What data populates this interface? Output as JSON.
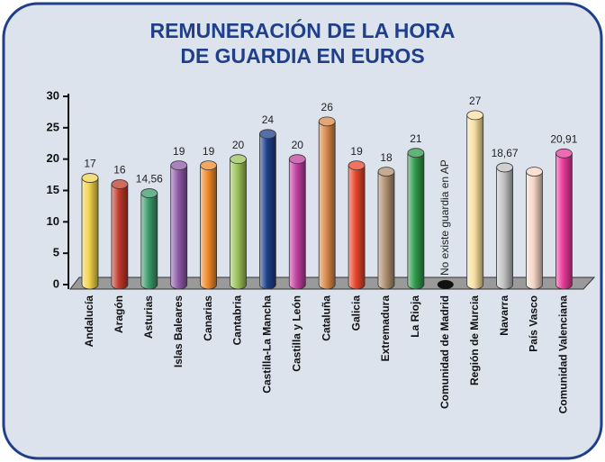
{
  "chart_data": {
    "type": "bar",
    "title": [
      "REMUNERACIÓN DE LA HORA",
      "DE GUARDIA EN EUROS"
    ],
    "categories": [
      "Andalucía",
      "Aragón",
      "Asturias",
      "Islas Baleares",
      "Canarias",
      "Cantabria",
      "Castilla-La Mancha",
      "Castilla y León",
      "Cataluña",
      "Galicia",
      "Extremadura",
      "La Rioja",
      "Comunidad de Madrid",
      "Región de Murcia",
      "Navarra",
      "País Vasco",
      "Comunidad Valenciana"
    ],
    "values": [
      17,
      16,
      14.56,
      19,
      19,
      20,
      24,
      20,
      26,
      19,
      18,
      21,
      null,
      27,
      18.67,
      18,
      20.91
    ],
    "value_labels": [
      "17",
      "16",
      "14,56",
      "19",
      "19",
      "20",
      "24",
      "20",
      "26",
      "19",
      "18",
      "21",
      null,
      "27",
      "18,67",
      null,
      "20,91"
    ],
    "colors": [
      "#f2d24a",
      "#c0392b",
      "#3a9a6a",
      "#8e5aa8",
      "#f08a2a",
      "#9cc25a",
      "#1f3f8a",
      "#c03fa0",
      "#d98a4a",
      "#e8452a",
      "#b09070",
      "#2e9a4a",
      "#111111",
      "#f8e0a0",
      "#c0c0c0",
      "#f6d6c6",
      "#e83a9a"
    ],
    "annotation": "No existe guardia en AP",
    "ylim": [
      0,
      30
    ],
    "yticks": [
      0,
      5,
      10,
      15,
      20,
      25,
      30
    ]
  }
}
